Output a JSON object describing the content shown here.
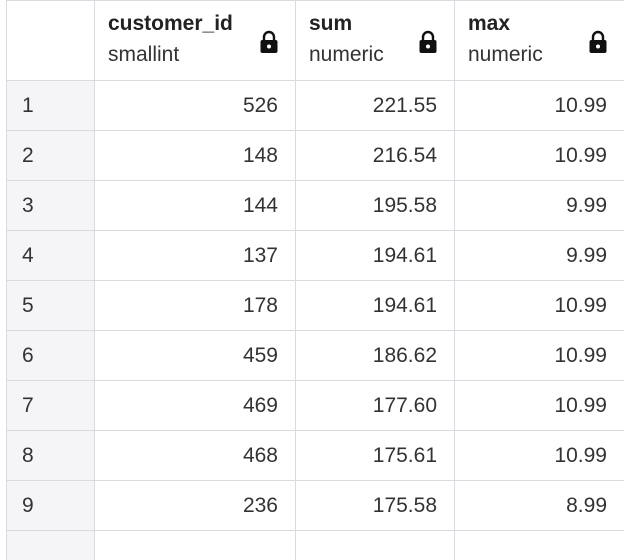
{
  "columns": [
    {
      "name": "customer_id",
      "type": "smallint",
      "icon": "lock-icon"
    },
    {
      "name": "sum",
      "type": "numeric",
      "icon": "lock-icon"
    },
    {
      "name": "max",
      "type": "numeric",
      "icon": "lock-icon"
    }
  ],
  "rows": [
    {
      "index": "1",
      "customer_id": "526",
      "sum": "221.55",
      "max": "10.99"
    },
    {
      "index": "2",
      "customer_id": "148",
      "sum": "216.54",
      "max": "10.99"
    },
    {
      "index": "3",
      "customer_id": "144",
      "sum": "195.58",
      "max": "9.99"
    },
    {
      "index": "4",
      "customer_id": "137",
      "sum": "194.61",
      "max": "9.99"
    },
    {
      "index": "5",
      "customer_id": "178",
      "sum": "194.61",
      "max": "10.99"
    },
    {
      "index": "6",
      "customer_id": "459",
      "sum": "186.62",
      "max": "10.99"
    },
    {
      "index": "7",
      "customer_id": "469",
      "sum": "177.60",
      "max": "10.99"
    },
    {
      "index": "8",
      "customer_id": "468",
      "sum": "175.61",
      "max": "10.99"
    },
    {
      "index": "9",
      "customer_id": "236",
      "sum": "175.58",
      "max": "8.99"
    }
  ]
}
